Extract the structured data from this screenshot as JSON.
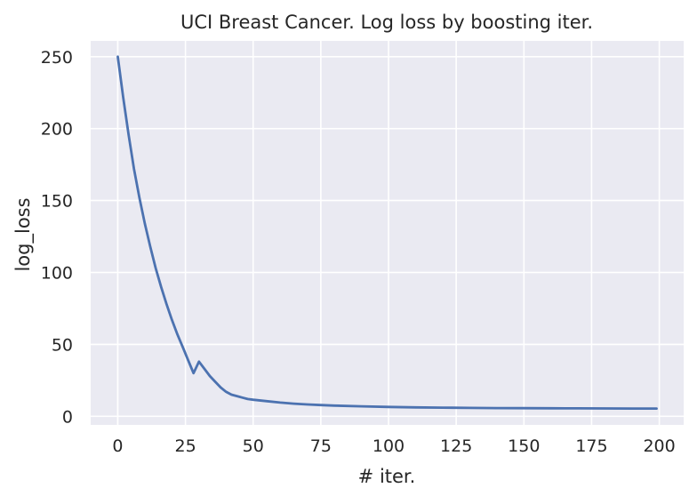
{
  "chart_data": {
    "type": "line",
    "title": "UCI Breast Cancer. Log loss by boosting iter.",
    "xlabel": "# iter.",
    "ylabel": "log_loss",
    "xlim": [
      -10,
      209
    ],
    "ylim": [
      -6,
      261
    ],
    "xticks": [
      0,
      25,
      50,
      75,
      100,
      125,
      150,
      175,
      200
    ],
    "yticks": [
      0,
      50,
      100,
      150,
      200,
      250
    ],
    "grid": true,
    "background": "#eaeaf2",
    "grid_color": "#ffffff",
    "line_color": "#4c72b0",
    "series": [
      {
        "x": [
          0,
          2,
          4,
          6,
          8,
          10,
          12,
          14,
          16,
          18,
          20,
          22,
          24,
          26,
          28,
          30,
          32,
          34,
          36,
          38,
          40,
          42,
          44,
          46,
          48,
          50,
          55,
          60,
          65,
          70,
          75,
          80,
          90,
          100,
          110,
          120,
          130,
          140,
          150,
          160,
          170,
          180,
          190,
          199
        ],
        "y": [
          250,
          222,
          196,
          172,
          152,
          134,
          118,
          103,
          90,
          78,
          67,
          57,
          48,
          39,
          30,
          38,
          33,
          28,
          24,
          20,
          17,
          15,
          14,
          13,
          12,
          11.5,
          10.5,
          9.5,
          8.8,
          8.2,
          7.8,
          7.4,
          6.9,
          6.5,
          6.2,
          6.0,
          5.8,
          5.7,
          5.6,
          5.55,
          5.5,
          5.45,
          5.4,
          5.4
        ]
      }
    ]
  }
}
